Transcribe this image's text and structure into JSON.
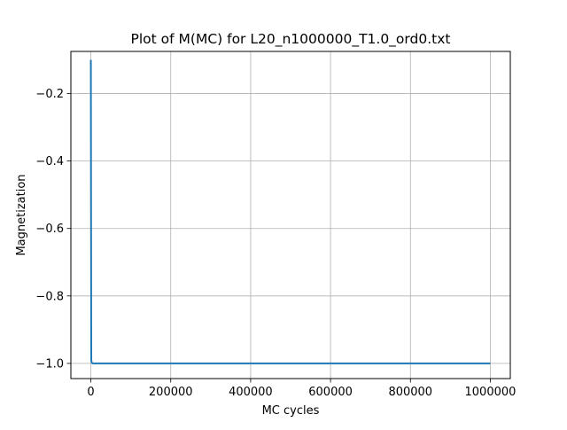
{
  "chart_data": {
    "type": "line",
    "title": "Plot of M(MC) for L20_n1000000_T1.0_ord0.txt",
    "xlabel": "MC cycles",
    "ylabel": "Magnetization",
    "xlim": [
      -50000,
      1050000
    ],
    "ylim": [
      -1.045,
      -0.075
    ],
    "xticks": [
      0,
      200000,
      400000,
      600000,
      800000,
      1000000
    ],
    "xtick_labels": [
      "0",
      "200000",
      "400000",
      "600000",
      "800000",
      "1000000"
    ],
    "yticks": [
      -1.0,
      -0.8,
      -0.6,
      -0.4,
      -0.2
    ],
    "ytick_labels": [
      "−1.0",
      "−0.8",
      "−0.6",
      "−0.4",
      "−0.2"
    ],
    "grid": true,
    "series": [
      {
        "color": "#1f77b4",
        "x": [
          0,
          1000,
          2000,
          3000,
          5000,
          10000,
          100000,
          500000,
          1000000
        ],
        "y": [
          -0.1,
          -0.99,
          -0.996,
          -0.999,
          -1.0,
          -1.0,
          -1.0,
          -1.0,
          -1.0
        ]
      }
    ]
  }
}
